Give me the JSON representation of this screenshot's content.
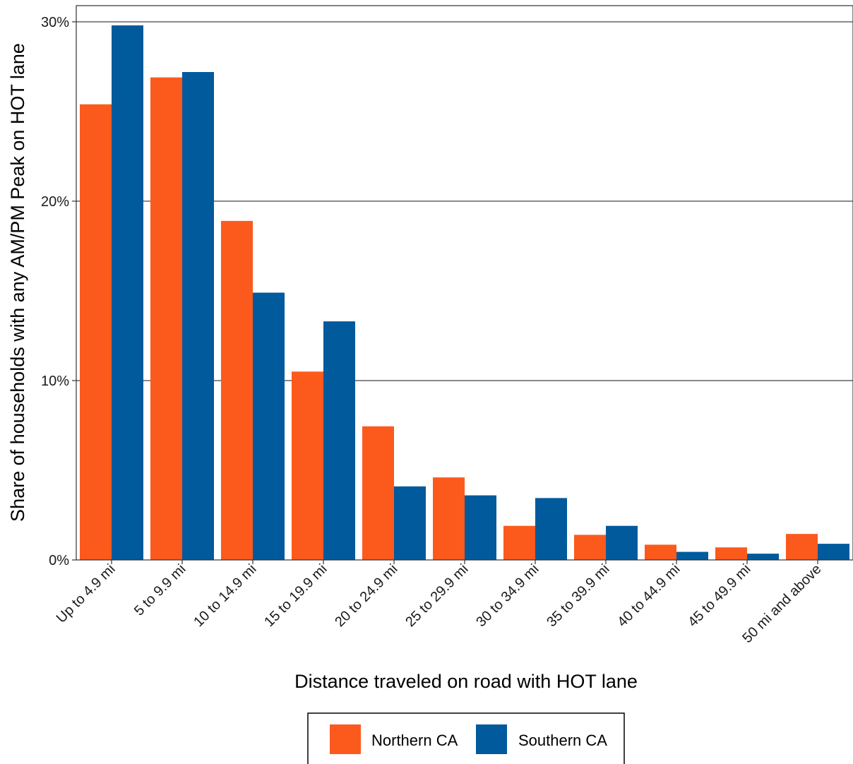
{
  "chart_data": {
    "type": "bar",
    "xlabel": "Distance traveled on road with HOT lane",
    "ylabel": "Share of households with any AM/PM Peak on HOT lane",
    "categories": [
      "Up to 4.9 mi",
      "5 to 9.9 mi",
      "10 to 14.9 mi",
      "15 to 19.9 mi",
      "20 to 24.9 mi",
      "25 to 29.9 mi",
      "30 to 34.9 mi",
      "35 to 39.9 mi",
      "40 to 44.9 mi",
      "45 to 49.9 mi",
      "50 mi and above"
    ],
    "series": [
      {
        "name": "Northern CA",
        "color": "#FC5A1D",
        "values": [
          25.4,
          26.9,
          18.9,
          10.5,
          7.45,
          4.6,
          1.9,
          1.4,
          0.85,
          0.7,
          1.45
        ]
      },
      {
        "name": "Southern CA",
        "color": "#005A9C",
        "values": [
          29.8,
          27.2,
          14.9,
          13.3,
          4.1,
          3.6,
          3.45,
          1.9,
          0.45,
          0.35,
          0.9
        ]
      }
    ],
    "ylim": [
      0,
      30.9
    ],
    "yticks": [
      0,
      10,
      20,
      30
    ],
    "ytick_labels": [
      "0%",
      "10%",
      "20%",
      "30%"
    ],
    "grid": "horizontal major",
    "legend_position": "bottom"
  }
}
